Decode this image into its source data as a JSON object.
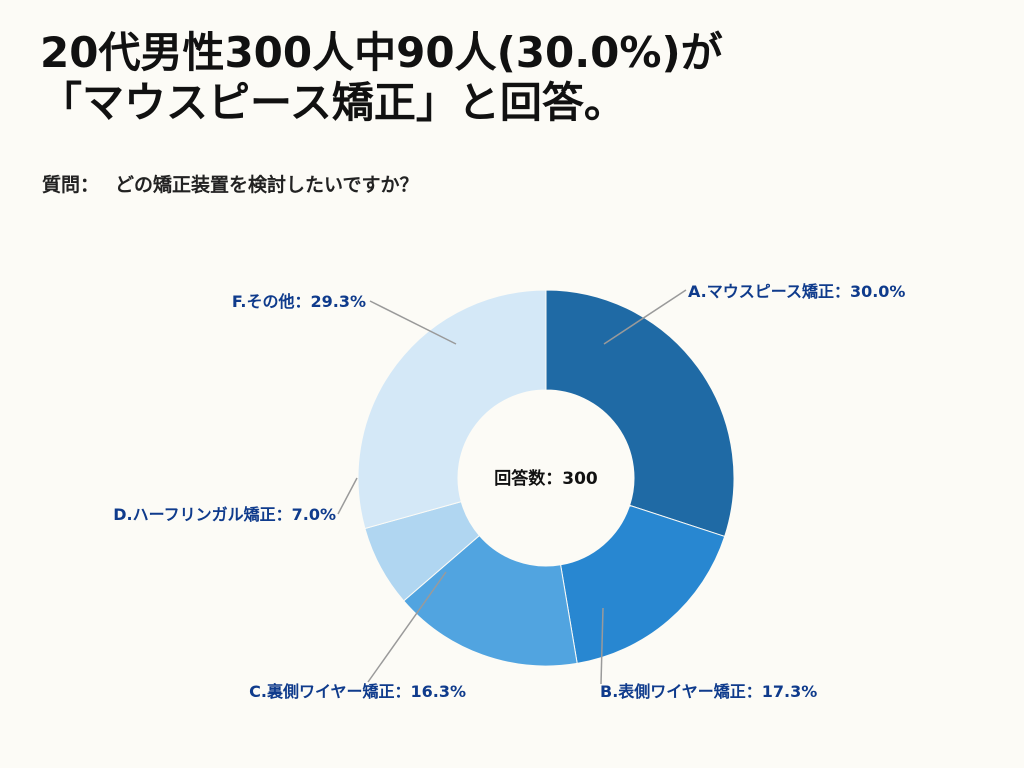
{
  "title": {
    "line1": "20代男性300人中90人(30.0%)が",
    "line2": "「マウスピース矯正」と回答。"
  },
  "question": {
    "label": "質問：",
    "text": "どの矯正装置を検討したいですか？"
  },
  "chart_data": {
    "type": "pie",
    "variant": "donut",
    "center_label": "回答数：300",
    "categories": [
      "A.マウスピース矯正",
      "B.表側ワイヤー矯正",
      "C.裏側ワイヤー矯正",
      "D.ハーフリンガル矯正",
      "F.その他"
    ],
    "values": [
      30.0,
      17.3,
      16.3,
      7.0,
      29.3
    ],
    "labels": [
      "A.マウスピース矯正：30.0%",
      "B.表側ワイヤー矯正：17.3%",
      "C.裏側ワイヤー矯正：16.3%",
      "D.ハーフリンガル矯正：7.0%",
      "F.その他：29.3%"
    ],
    "colors": [
      "#1f6aa5",
      "#2887d1",
      "#51a4e0",
      "#b0d6f1",
      "#d4e8f7"
    ],
    "label_color": "#0f3b8c",
    "start": "top",
    "direction": "clockwise"
  }
}
